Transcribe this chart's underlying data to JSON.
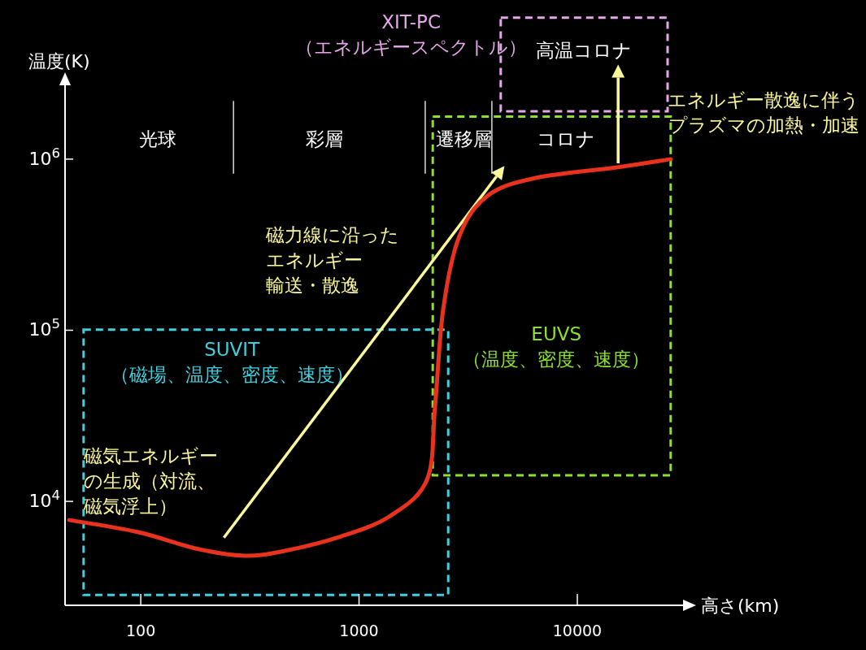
{
  "chart_data": {
    "type": "line",
    "xlabel": "高さ(km)",
    "ylabel": "温度(K)",
    "log": "xy",
    "xlim": [
      45,
      30500
    ],
    "ylim": [
      2470,
      2700000
    ],
    "xticks": [
      100,
      1000,
      10000
    ],
    "yticks": [
      {
        "value": 10000,
        "label": "10$^{4}$"
      },
      {
        "value": 100000,
        "label": "10$^{5}$"
      },
      {
        "value": 1000000,
        "label": "10$^{6}$"
      }
    ],
    "grid": false,
    "marker": "none",
    "line_style": "solid",
    "series": [
      {
        "color": "#e8321e",
        "x": [
          47,
          97.5,
          178,
          297,
          456,
          830,
          1390,
          2050,
          2230,
          2430,
          2880,
          3890,
          6510,
          15400,
          26800
        ],
        "values": [
          7780,
          6610,
          5310,
          4810,
          5140,
          6250,
          8220,
          13400,
          35900,
          133000,
          355000,
          612000,
          778000,
          897000,
          1000000
        ]
      }
    ],
    "ref_lines": [
      {
        "axis": "x",
        "value": 266,
        "color": "#dddddd"
      },
      {
        "axis": "x",
        "value": 2010,
        "color": "#dddddd"
      },
      {
        "axis": "x",
        "value": 4060,
        "color": "#dddddd"
      }
    ],
    "annotations": [
      "XIT-PC\n（エネルギースペクトル）",
      "高温コロナ",
      "光球",
      "彩層",
      "遷移層",
      "コロナ",
      "エネルギー散逸に伴う",
      "プラズマの加熱・加速",
      "磁力線に沿った",
      "エネルギー",
      "輸送・散逸",
      "SUVIT\n（磁場、温度、密度、速度）",
      "EUVS\n（温度、密度、速度）",
      "磁気エネルギー",
      "の生成（対流、",
      "磁気浮上）"
    ]
  }
}
